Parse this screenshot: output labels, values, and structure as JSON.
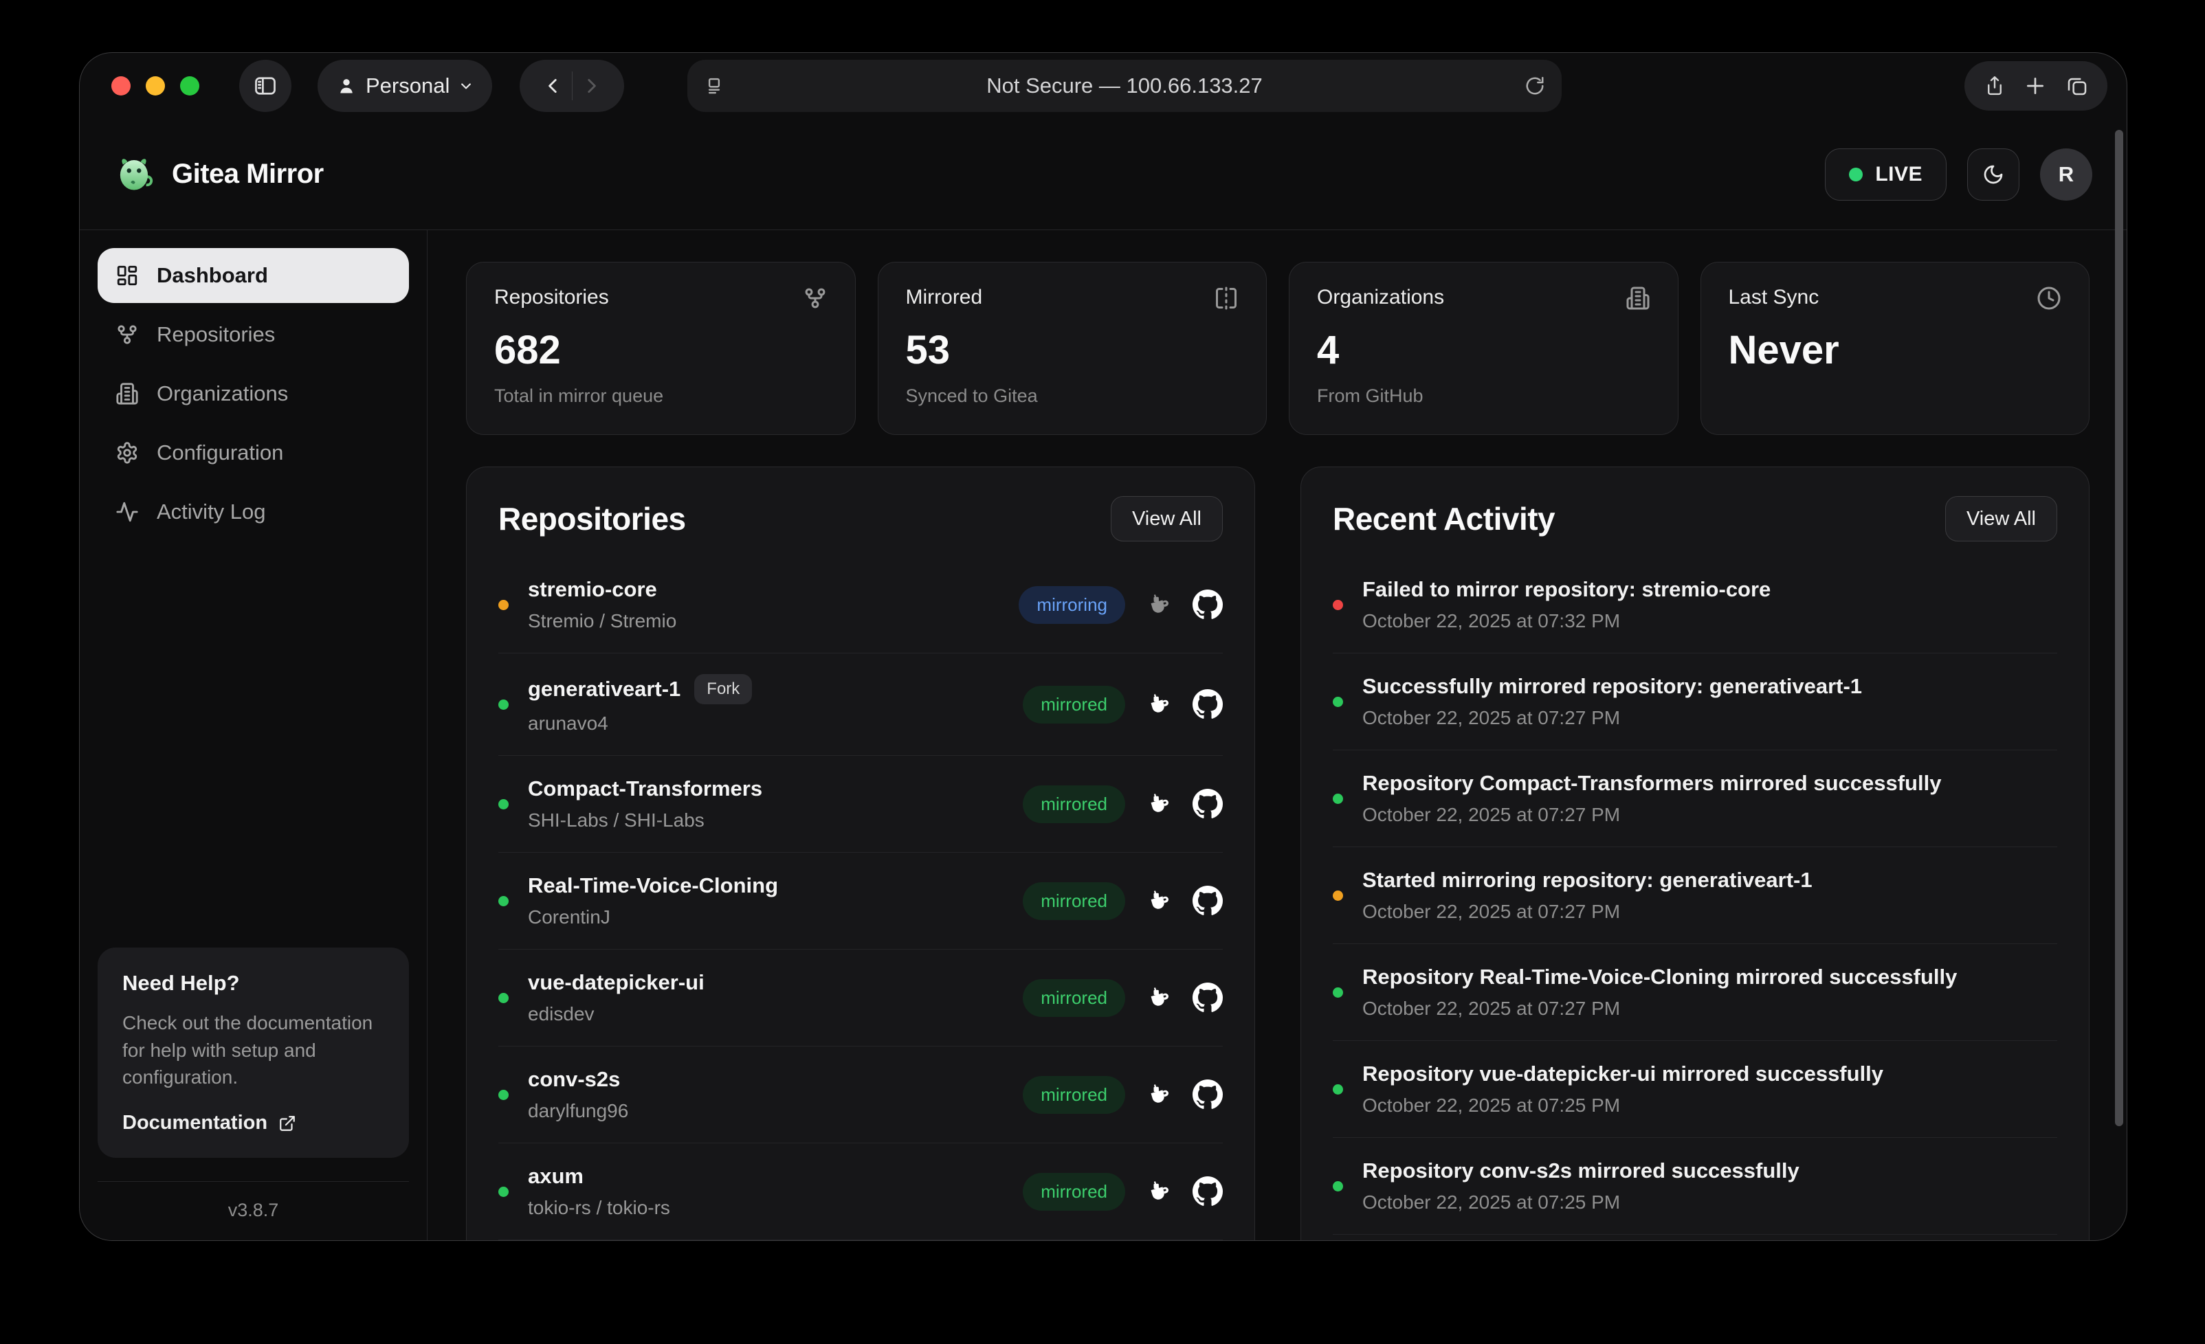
{
  "browser": {
    "profile_label": "Personal",
    "address": "Not Secure — 100.66.133.27"
  },
  "header": {
    "app_title": "Gitea Mirror",
    "live_label": "LIVE",
    "avatar_initial": "R"
  },
  "sidebar": {
    "items": [
      {
        "label": "Dashboard",
        "icon": "dashboard-icon",
        "active": true
      },
      {
        "label": "Repositories",
        "icon": "git-fork-icon",
        "active": false
      },
      {
        "label": "Organizations",
        "icon": "building-icon",
        "active": false
      },
      {
        "label": "Configuration",
        "icon": "gear-icon",
        "active": false
      },
      {
        "label": "Activity Log",
        "icon": "activity-icon",
        "active": false
      }
    ],
    "help": {
      "title": "Need Help?",
      "body": "Check out the documentation for help with setup and configuration.",
      "link_label": "Documentation"
    },
    "version": "v3.8.7"
  },
  "stats": [
    {
      "title": "Repositories",
      "value": "682",
      "subtitle": "Total in mirror queue",
      "icon": "git-fork-icon"
    },
    {
      "title": "Mirrored",
      "value": "53",
      "subtitle": "Synced to Gitea",
      "icon": "mirror-icon"
    },
    {
      "title": "Organizations",
      "value": "4",
      "subtitle": "From GitHub",
      "icon": "building-icon"
    },
    {
      "title": "Last Sync",
      "value": "Never",
      "subtitle": "",
      "icon": "clock-icon"
    }
  ],
  "repositories_panel": {
    "title": "Repositories",
    "view_all_label": "View All",
    "rows": [
      {
        "name": "stremio-core",
        "owner": "Stremio / Stremio",
        "status": "mirroring",
        "dot": "orange",
        "fork": false
      },
      {
        "name": "generativeart-1",
        "owner": "arunavo4",
        "status": "mirrored",
        "dot": "green",
        "fork": true,
        "fork_label": "Fork"
      },
      {
        "name": "Compact-Transformers",
        "owner": "SHI-Labs / SHI-Labs",
        "status": "mirrored",
        "dot": "green",
        "fork": false
      },
      {
        "name": "Real-Time-Voice-Cloning",
        "owner": "CorentinJ",
        "status": "mirrored",
        "dot": "green",
        "fork": false
      },
      {
        "name": "vue-datepicker-ui",
        "owner": "edisdev",
        "status": "mirrored",
        "dot": "green",
        "fork": false
      },
      {
        "name": "conv-s2s",
        "owner": "darylfung96",
        "status": "mirrored",
        "dot": "green",
        "fork": false
      },
      {
        "name": "axum",
        "owner": "tokio-rs / tokio-rs",
        "status": "mirrored",
        "dot": "green",
        "fork": false
      }
    ]
  },
  "activity_panel": {
    "title": "Recent Activity",
    "view_all_label": "View All",
    "items": [
      {
        "message": "Failed to mirror repository: stremio-core",
        "timestamp": "October 22, 2025 at 07:32 PM",
        "dot": "red"
      },
      {
        "message": "Successfully mirrored repository: generativeart-1",
        "timestamp": "October 22, 2025 at 07:27 PM",
        "dot": "green"
      },
      {
        "message": "Repository Compact-Transformers mirrored successfully",
        "timestamp": "October 22, 2025 at 07:27 PM",
        "dot": "green"
      },
      {
        "message": "Started mirroring repository: generativeart-1",
        "timestamp": "October 22, 2025 at 07:27 PM",
        "dot": "orange"
      },
      {
        "message": "Repository Real-Time-Voice-Cloning mirrored successfully",
        "timestamp": "October 22, 2025 at 07:27 PM",
        "dot": "green"
      },
      {
        "message": "Repository vue-datepicker-ui mirrored successfully",
        "timestamp": "October 22, 2025 at 07:25 PM",
        "dot": "green"
      },
      {
        "message": "Repository conv-s2s mirrored successfully",
        "timestamp": "October 22, 2025 at 07:25 PM",
        "dot": "green"
      }
    ]
  },
  "colors": {
    "status_green": "#2bc75a",
    "status_orange": "#f0a020",
    "status_red": "#ee4444",
    "badge_mirroring_text": "#6aa3f8",
    "badge_mirroring_bg": "#1a2742",
    "badge_mirrored_text": "#3dcf6d",
    "badge_mirrored_bg": "#132a1c",
    "live_dot": "#2ed573"
  }
}
